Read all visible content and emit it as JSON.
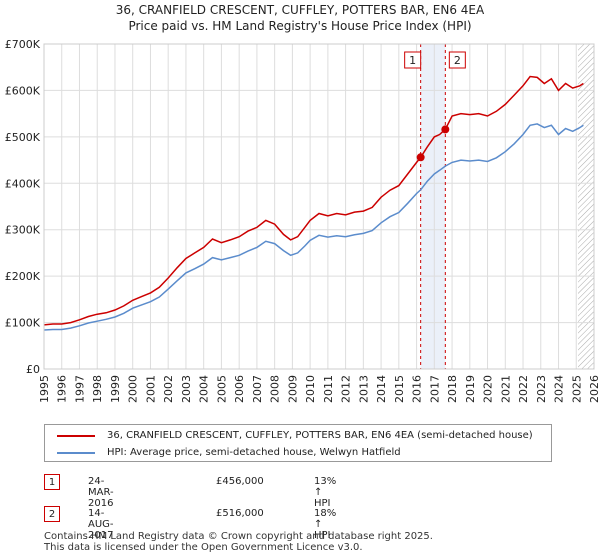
{
  "chart_data": {
    "type": "line",
    "title": "36, CRANFIELD CRESCENT, CUFFLEY, POTTERS BAR, EN6 4EA",
    "subtitle": "Price paid vs. HM Land Registry's House Price Index (HPI)",
    "xlim": [
      1995,
      2026
    ],
    "ylim": [
      0,
      700000
    ],
    "xticks": [
      "1995",
      "1996",
      "1997",
      "1998",
      "1999",
      "2000",
      "2001",
      "2002",
      "2003",
      "2004",
      "2005",
      "2006",
      "2007",
      "2008",
      "2009",
      "2010",
      "2011",
      "2012",
      "2013",
      "2014",
      "2015",
      "2016",
      "2017",
      "2018",
      "2019",
      "2020",
      "2021",
      "2022",
      "2023",
      "2024",
      "2025",
      "2026"
    ],
    "yticks": [
      {
        "value": 0,
        "label": "£0"
      },
      {
        "value": 100000,
        "label": "£100K"
      },
      {
        "value": 200000,
        "label": "£200K"
      },
      {
        "value": 300000,
        "label": "£300K"
      },
      {
        "value": 400000,
        "label": "£400K"
      },
      {
        "value": 500000,
        "label": "£500K"
      },
      {
        "value": 600000,
        "label": "£600K"
      },
      {
        "value": 700000,
        "label": "£700K"
      }
    ],
    "grid": true,
    "series": [
      {
        "name": "36, CRANFIELD CRESCENT, CUFFLEY, POTTERS BAR, EN6 4EA (semi-detached house)",
        "color": "#cc0000",
        "points": [
          [
            1995.0,
            95000
          ],
          [
            1995.5,
            97000
          ],
          [
            1996.0,
            97000
          ],
          [
            1996.5,
            100000
          ],
          [
            1997.0,
            106000
          ],
          [
            1997.5,
            113000
          ],
          [
            1998.0,
            118000
          ],
          [
            1998.5,
            121000
          ],
          [
            1999.0,
            127000
          ],
          [
            1999.5,
            136000
          ],
          [
            2000.0,
            148000
          ],
          [
            2000.5,
            156000
          ],
          [
            2001.0,
            164000
          ],
          [
            2001.5,
            176000
          ],
          [
            2002.0,
            196000
          ],
          [
            2002.5,
            218000
          ],
          [
            2003.0,
            238000
          ],
          [
            2003.5,
            250000
          ],
          [
            2004.0,
            262000
          ],
          [
            2004.5,
            280000
          ],
          [
            2005.0,
            272000
          ],
          [
            2005.5,
            278000
          ],
          [
            2006.0,
            285000
          ],
          [
            2006.5,
            297000
          ],
          [
            2007.0,
            305000
          ],
          [
            2007.5,
            320000
          ],
          [
            2008.0,
            312000
          ],
          [
            2008.5,
            290000
          ],
          [
            2008.9,
            278000
          ],
          [
            2009.3,
            285000
          ],
          [
            2009.7,
            305000
          ],
          [
            2010.0,
            320000
          ],
          [
            2010.5,
            335000
          ],
          [
            2011.0,
            330000
          ],
          [
            2011.5,
            335000
          ],
          [
            2012.0,
            332000
          ],
          [
            2012.5,
            338000
          ],
          [
            2013.0,
            340000
          ],
          [
            2013.5,
            348000
          ],
          [
            2014.0,
            370000
          ],
          [
            2014.5,
            385000
          ],
          [
            2015.0,
            395000
          ],
          [
            2015.5,
            420000
          ],
          [
            2016.0,
            445000
          ],
          [
            2016.23,
            456000
          ],
          [
            2016.6,
            478000
          ],
          [
            2017.0,
            500000
          ],
          [
            2017.3,
            505000
          ],
          [
            2017.62,
            516000
          ],
          [
            2018.0,
            545000
          ],
          [
            2018.5,
            550000
          ],
          [
            2019.0,
            548000
          ],
          [
            2019.5,
            550000
          ],
          [
            2020.0,
            545000
          ],
          [
            2020.5,
            555000
          ],
          [
            2021.0,
            570000
          ],
          [
            2021.5,
            590000
          ],
          [
            2022.0,
            610000
          ],
          [
            2022.4,
            630000
          ],
          [
            2022.8,
            628000
          ],
          [
            2023.2,
            615000
          ],
          [
            2023.6,
            625000
          ],
          [
            2024.0,
            600000
          ],
          [
            2024.4,
            615000
          ],
          [
            2024.8,
            605000
          ],
          [
            2025.2,
            610000
          ],
          [
            2025.4,
            615000
          ]
        ]
      },
      {
        "name": "HPI: Average price, semi-detached house, Welwyn Hatfield",
        "color": "#5b8ccc",
        "points": [
          [
            1995.0,
            84000
          ],
          [
            1995.5,
            85000
          ],
          [
            1996.0,
            85000
          ],
          [
            1996.5,
            88000
          ],
          [
            1997.0,
            93000
          ],
          [
            1997.5,
            99000
          ],
          [
            1998.0,
            103000
          ],
          [
            1998.5,
            107000
          ],
          [
            1999.0,
            112000
          ],
          [
            1999.5,
            120000
          ],
          [
            2000.0,
            131000
          ],
          [
            2000.5,
            138000
          ],
          [
            2001.0,
            145000
          ],
          [
            2001.5,
            155000
          ],
          [
            2002.0,
            172000
          ],
          [
            2002.5,
            190000
          ],
          [
            2003.0,
            207000
          ],
          [
            2003.5,
            216000
          ],
          [
            2004.0,
            226000
          ],
          [
            2004.5,
            240000
          ],
          [
            2005.0,
            235000
          ],
          [
            2005.5,
            240000
          ],
          [
            2006.0,
            245000
          ],
          [
            2006.5,
            254000
          ],
          [
            2007.0,
            262000
          ],
          [
            2007.5,
            275000
          ],
          [
            2008.0,
            270000
          ],
          [
            2008.5,
            255000
          ],
          [
            2008.9,
            245000
          ],
          [
            2009.3,
            250000
          ],
          [
            2009.7,
            265000
          ],
          [
            2010.0,
            277000
          ],
          [
            2010.5,
            288000
          ],
          [
            2011.0,
            284000
          ],
          [
            2011.5,
            287000
          ],
          [
            2012.0,
            285000
          ],
          [
            2012.5,
            289000
          ],
          [
            2013.0,
            292000
          ],
          [
            2013.5,
            298000
          ],
          [
            2014.0,
            315000
          ],
          [
            2014.5,
            328000
          ],
          [
            2015.0,
            337000
          ],
          [
            2015.5,
            357000
          ],
          [
            2016.0,
            378000
          ],
          [
            2016.23,
            386000
          ],
          [
            2016.6,
            404000
          ],
          [
            2017.0,
            420000
          ],
          [
            2017.3,
            428000
          ],
          [
            2017.62,
            437000
          ],
          [
            2018.0,
            445000
          ],
          [
            2018.5,
            450000
          ],
          [
            2019.0,
            448000
          ],
          [
            2019.5,
            450000
          ],
          [
            2020.0,
            447000
          ],
          [
            2020.5,
            455000
          ],
          [
            2021.0,
            468000
          ],
          [
            2021.5,
            485000
          ],
          [
            2022.0,
            505000
          ],
          [
            2022.4,
            525000
          ],
          [
            2022.8,
            528000
          ],
          [
            2023.2,
            520000
          ],
          [
            2023.6,
            525000
          ],
          [
            2024.0,
            505000
          ],
          [
            2024.4,
            518000
          ],
          [
            2024.8,
            512000
          ],
          [
            2025.2,
            520000
          ],
          [
            2025.4,
            525000
          ]
        ]
      }
    ],
    "sales": [
      {
        "label": "1",
        "x": 2016.23,
        "value": 456000
      },
      {
        "label": "2",
        "x": 2017.62,
        "value": 516000
      }
    ],
    "shaded_ranges": [
      [
        2016.23,
        2017.62
      ]
    ],
    "hatched_from": 2025.1
  },
  "legend": {
    "property": "36, CRANFIELD CRESCENT, CUFFLEY, POTTERS BAR, EN6 4EA (semi-detached house)",
    "hpi": "HPI: Average price, semi-detached house, Welwyn Hatfield"
  },
  "sales_table": [
    {
      "num": "1",
      "date": "24-MAR-2016",
      "price": "£456,000",
      "hpi": "13% ↑ HPI"
    },
    {
      "num": "2",
      "date": "14-AUG-2017",
      "price": "£516,000",
      "hpi": "18% ↑ HPI"
    }
  ],
  "footer": {
    "line1": "Contains HM Land Registry data © Crown copyright and database right 2025.",
    "line2": "This data is licensed under the Open Government Licence v3.0."
  }
}
